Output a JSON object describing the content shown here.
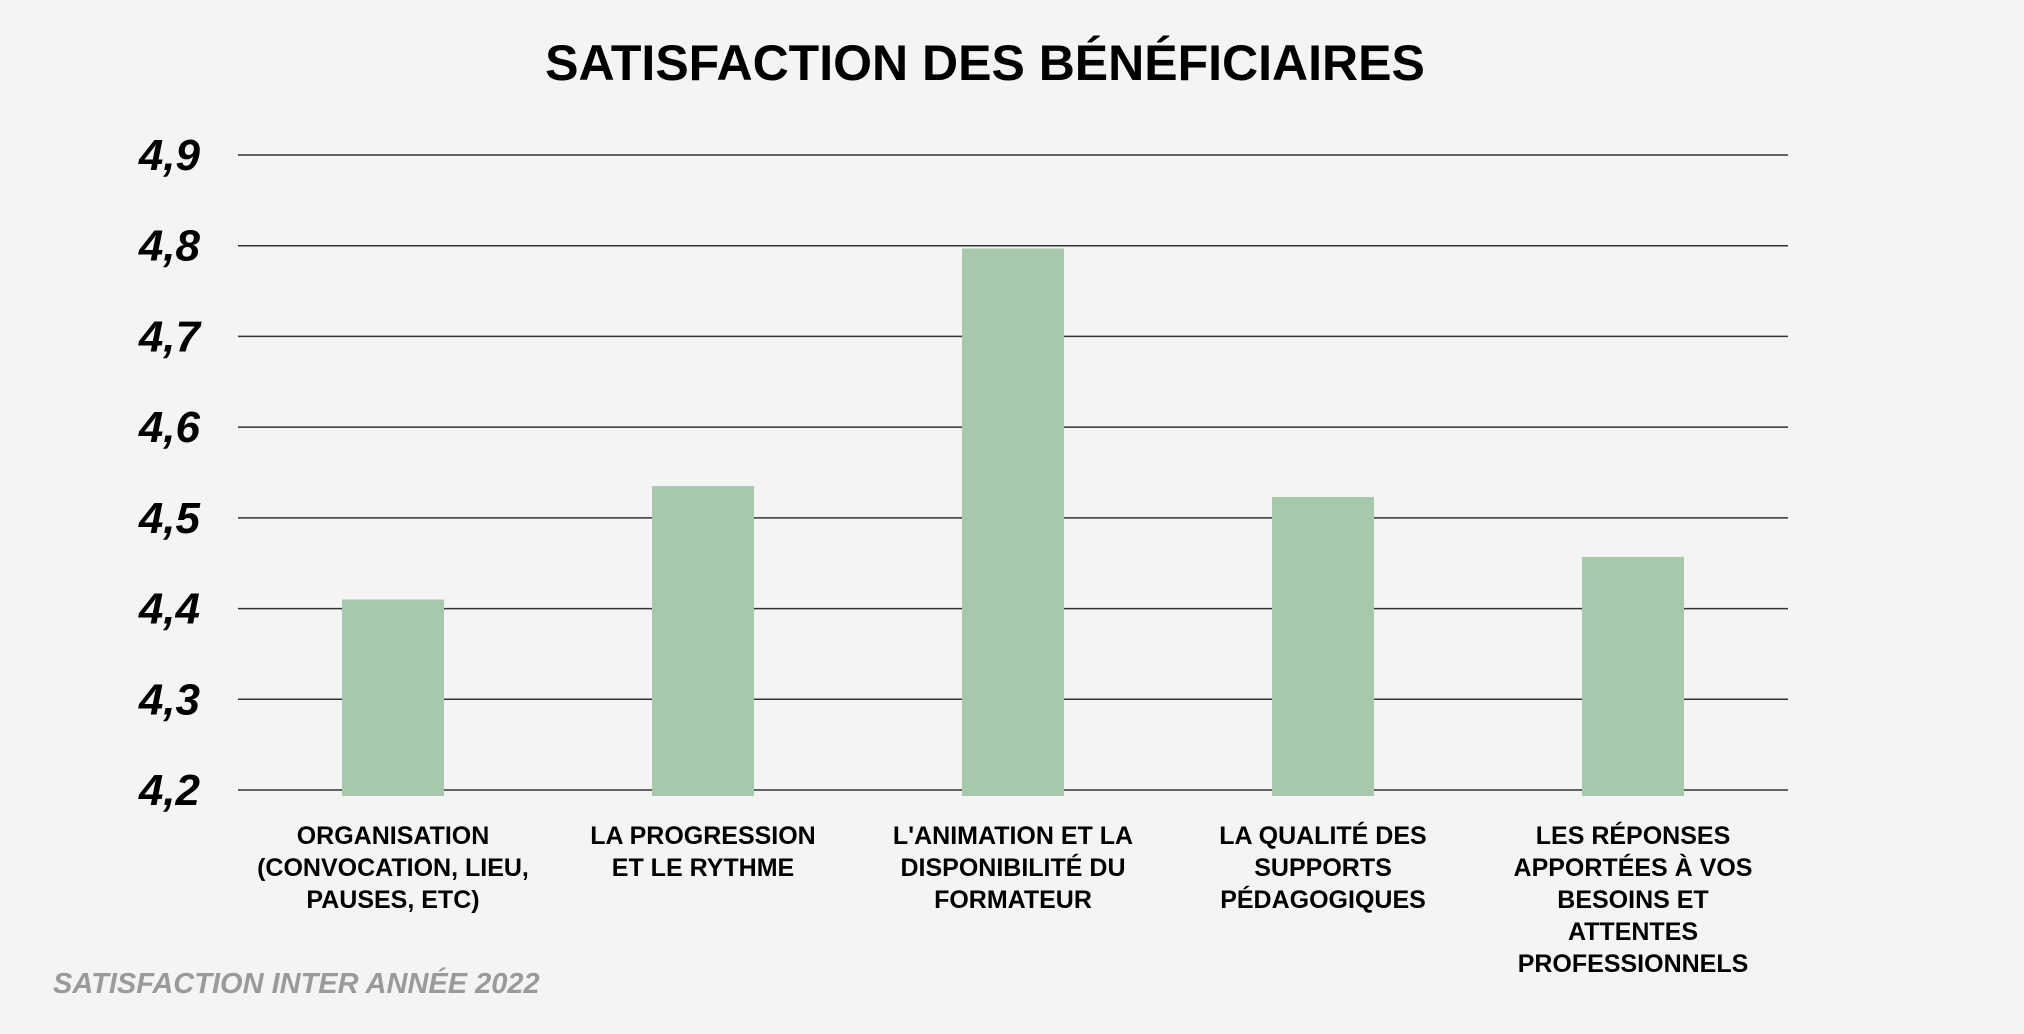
{
  "chart_data": {
    "type": "bar",
    "title": "SATISFACTION DES BÉNÉFICIAIRES",
    "xlabel": "",
    "ylabel": "",
    "categories": [
      [
        "ORGANISATION",
        "(CONVOCATION, LIEU,",
        "PAUSES, ETC)"
      ],
      [
        "LA PROGRESSION",
        "ET LE RYTHME"
      ],
      [
        "L'ANIMATION ET LA",
        "DISPONIBILITÉ DU",
        "FORMATEUR"
      ],
      [
        "LA QUALITÉ DES",
        "SUPPORTS",
        "PÉDAGOGIQUES"
      ],
      [
        "LES RÉPONSES",
        "APPORTÉES À VOS",
        "BESOINS ET",
        "ATTENTES",
        "PROFESSIONNELS"
      ]
    ],
    "values": [
      4.41,
      4.535,
      4.797,
      4.523,
      4.457
    ],
    "ylim": [
      4.2,
      4.9
    ],
    "yticks": [
      4.2,
      4.3,
      4.4,
      4.5,
      4.6,
      4.7,
      4.8,
      4.9
    ],
    "ytick_labels": [
      "4,2",
      "4,3",
      "4,4",
      "4,5",
      "4,6",
      "4,7",
      "4,8",
      "4,9"
    ],
    "grid": true,
    "legend": "none",
    "bar_color": "#a8c8ac",
    "grid_color": "#333333"
  },
  "footer": "SATISFACTION INTER ANNÉE 2022"
}
